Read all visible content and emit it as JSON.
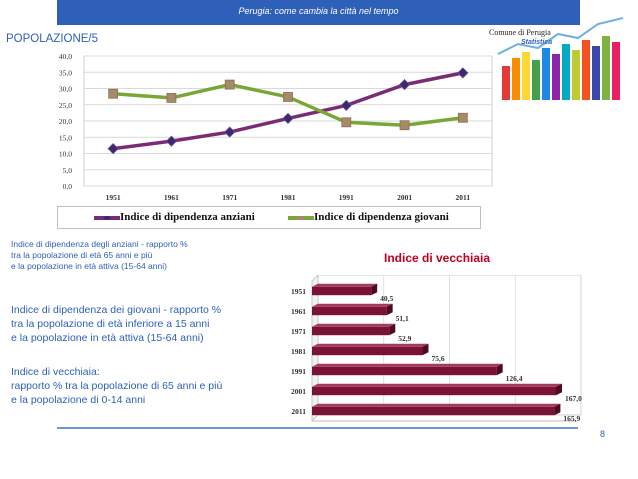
{
  "header": {
    "title": "Perugia: come cambia la città nel tempo"
  },
  "section_title": "POPOLAZIONE/5",
  "logo": {
    "line1": "Comune di Perugia",
    "line2": "Statistica"
  },
  "colors": {
    "header_bg": "#2f60b9",
    "text_blue": "#2f60b9",
    "series_anziani": "#7b2b73",
    "series_anziani_marker": "#3b2a6e",
    "series_giovani": "#7aa637",
    "series_giovani_marker": "#a68b6a",
    "bar": "#7a1234",
    "vecchiaia_title": "#c0001e"
  },
  "chart_data": [
    {
      "type": "line",
      "x": [
        "1951",
        "1961",
        "1971",
        "1981",
        "1991",
        "2001",
        "2011"
      ],
      "ylim": [
        0,
        40
      ],
      "yticks": [
        "0,0",
        "5,0",
        "10,0",
        "15,0",
        "20,0",
        "25,0",
        "30,0",
        "35,0",
        "40,0"
      ],
      "grid": true,
      "legend_position": "bottom",
      "series": [
        {
          "name": "Indice di dipendenza anziani",
          "values": [
            11.5,
            13.8,
            16.6,
            20.8,
            24.8,
            31.2,
            34.8
          ]
        },
        {
          "name": "Indice di dipendenza giovani",
          "values": [
            28.4,
            27.1,
            31.2,
            27.4,
            19.6,
            18.7,
            21.0
          ]
        }
      ]
    },
    {
      "type": "bar",
      "orientation": "horizontal",
      "title": "Indice di vecchiaia",
      "categories": [
        "1951",
        "1961",
        "1971",
        "1981",
        "1991",
        "2001",
        "2011"
      ],
      "values": [
        40.5,
        51.1,
        52.9,
        75.6,
        126.4,
        167.0,
        165.9
      ],
      "data_labels": [
        "40,5",
        "51,1",
        "52,9",
        "75,6",
        "126,4",
        "167,0",
        "165,9"
      ],
      "xlim": [
        0,
        180
      ]
    }
  ],
  "descriptions": {
    "anziani": "Indice di dipendenza degli anziani - rapporto %\ntra la popolazione di età  65 anni e più\ne la popolazione in età attiva (15-64 anni)",
    "giovani": "Indice di dipendenza dei giovani - rapporto %\ntra la popolazione di età  inferiore a 15 anni\ne la popolazione in età attiva (15-64 anni)",
    "vecchiaia": "Indice di vecchiaia:\nrapporto % tra la popolazione di 65 anni e più\ne la popolazione di 0-14 anni"
  },
  "page_number": "8"
}
